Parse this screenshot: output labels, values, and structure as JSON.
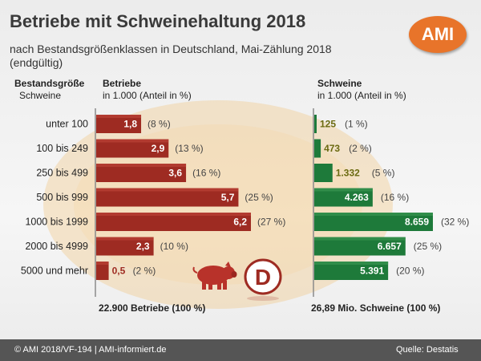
{
  "header": {
    "title": "Betriebe mit Schweinehaltung 2018",
    "subtitle": "nach Bestandsgrößenklassen in Deutschland, Mai-Zählung 2018 (endgültig)",
    "logo": "AMI"
  },
  "columns": {
    "size_title": "Bestandsgröße",
    "size_unit": "Schweine",
    "farms_title": "Betriebe",
    "farms_unit": "in 1.000 (Anteil in %)",
    "pigs_title": "Schweine",
    "pigs_unit": "in 1.000 (Anteil in %)"
  },
  "totals": {
    "farms": "22.900 Betriebe (100 %)",
    "pigs": "26,89 Mio. Schweine (100 %)"
  },
  "footer": {
    "left": "© AMI 2018/VF-194 | AMI-informiert.de",
    "right": "Quelle:  Destatis"
  },
  "colors": {
    "farms_bar": "#9e2b22",
    "pigs_bar": "#1e7a3a",
    "footer_bg": "#555555",
    "accent": "#e8742a",
    "pig_icon": "#b8322a"
  },
  "icons": [
    "pig-icon",
    "germany-d-icon"
  ],
  "chart_data": [
    {
      "type": "bar",
      "orientation": "horizontal",
      "title": "Betriebe",
      "unit": "in 1.000 (Anteil in %)",
      "categories": [
        "unter 100",
        "100 bis 249",
        "250 bis 499",
        "500 bis 999",
        "1000 bis 1999",
        "2000 bis 4999",
        "5000 und mehr"
      ],
      "values": [
        1.8,
        2.9,
        3.6,
        5.7,
        6.2,
        2.3,
        0.5
      ],
      "value_labels": [
        "1,8",
        "2,9",
        "3,6",
        "5,7",
        "6,2",
        "2,3",
        "0,5"
      ],
      "share_labels": [
        "(8 %)",
        "(13 %)",
        "(16 %)",
        "(25 %)",
        "(27 %)",
        "(10 %)",
        "(2 %)"
      ],
      "grid": false
    },
    {
      "type": "bar",
      "orientation": "horizontal",
      "title": "Schweine",
      "unit": "in 1.000 (Anteil in %)",
      "categories": [
        "unter 100",
        "100 bis 249",
        "250 bis 499",
        "500 bis 999",
        "1000 bis 1999",
        "2000 bis 4999",
        "5000 und mehr"
      ],
      "values": [
        125,
        473,
        1332,
        4263,
        8659,
        6657,
        5391
      ],
      "value_labels": [
        "125",
        "473",
        "1.332",
        "4.263",
        "8.659",
        "6.657",
        "5.391"
      ],
      "share_labels": [
        "(1 %)",
        "(2 %)",
        "(5 %)",
        "(16 %)",
        "(32 %)",
        "(25 %)",
        "(20 %)"
      ],
      "grid": false
    }
  ]
}
